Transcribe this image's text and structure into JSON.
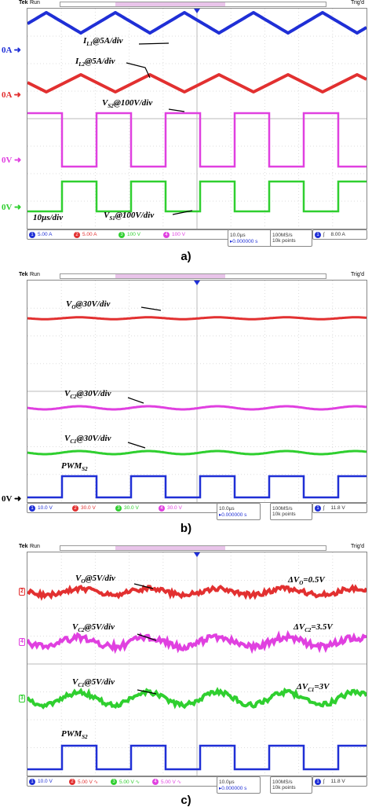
{
  "header": {
    "brand": "Tek",
    "state": "Run",
    "trigger": "Trig'd"
  },
  "colors": {
    "ch1": "#1f2fd6",
    "ch2": "#e23030",
    "ch3": "#2fcf2f",
    "ch4": "#e040e0"
  },
  "panels": [
    {
      "label": "a)",
      "levels": {
        "zero_a": "0A",
        "zero_a2": "0A",
        "zero_v": "0V",
        "zero_v2": "0V"
      },
      "annotations": {
        "il1": {
          "main": "I",
          "sub": "L1",
          "rest": "@5A/div"
        },
        "il2": {
          "main": "I",
          "sub": "L2",
          "rest": "@5A/div"
        },
        "vs2": {
          "main": "V",
          "sub": "S2",
          "rest": "@100V/div"
        },
        "vs1": {
          "main": "V",
          "sub": "S1",
          "rest": "@100V/div"
        },
        "time": "10µs/div"
      },
      "status": {
        "ch1": "5.00 A",
        "ch2": "5.00 A",
        "ch3": "100 V",
        "ch4": "100 V",
        "timebase": "10.0µs",
        "offset": "▸0.000000 s",
        "rate": "100MS/s",
        "points": "10k points",
        "trig_level": "8.00 A"
      }
    },
    {
      "label": "b)",
      "levels": {
        "zero_v": "0V"
      },
      "annotations": {
        "vo": {
          "main": "V",
          "sub": "O",
          "rest": "@30V/div"
        },
        "vc2": {
          "main": "V",
          "sub": "C2",
          "rest": "@30V/div"
        },
        "vc1": {
          "main": "V",
          "sub": "C1",
          "rest": "@30V/div"
        },
        "pwm": {
          "main": "PWM",
          "sub": "S2",
          "rest": ""
        }
      },
      "status": {
        "ch1": "10.0 V",
        "ch2": "30.0 V",
        "ch3": "30.0 V",
        "ch4": "30.0 V",
        "timebase": "10.0µs",
        "offset": "▸0.000000 s",
        "rate": "100MS/s",
        "points": "10k points",
        "trig_level": "11.8 V"
      }
    },
    {
      "label": "c)",
      "annotations": {
        "vo": {
          "main": "V",
          "sub": "O",
          "rest": "@5V/div"
        },
        "vc2": {
          "main": "V",
          "sub": "C2",
          "rest": "@5V/div"
        },
        "vc1": {
          "main": "V",
          "sub": "C1",
          "rest": "@5V/div"
        },
        "pwm": {
          "main": "PWM",
          "sub": "S2",
          "rest": ""
        },
        "dvo": {
          "main": "ΔV",
          "sub": "O",
          "rest": "=0.5V"
        },
        "dvc2": {
          "main": "ΔV",
          "sub": "C2",
          "rest": "=3.5V"
        },
        "dvc1": {
          "main": "ΔV",
          "sub": "C1",
          "rest": "=3V"
        }
      },
      "markers": {
        "ch2": "2",
        "ch4": "4",
        "ch3": "3"
      },
      "status": {
        "ch1": "10.0 V",
        "ch2": "5.00 V ∿",
        "ch3": "5.00 V ∿",
        "ch4": "5.00 V ∿",
        "timebase": "10.0µs",
        "offset": "▸0.000000 s",
        "rate": "100MS/s",
        "points": "10k points",
        "trig_level": "11.8 V"
      }
    }
  ],
  "chart_data": [
    {
      "type": "line",
      "title": "",
      "xlabel": "10µs/div",
      "series": [
        {
          "name": "IL1@5A/div",
          "shape": "triangle"
        },
        {
          "name": "IL2@5A/div",
          "shape": "triangle"
        },
        {
          "name": "VS2@100V/div",
          "shape": "square"
        },
        {
          "name": "VS1@100V/div",
          "shape": "square"
        }
      ],
      "grid": true
    },
    {
      "type": "line",
      "series": [
        {
          "name": "VO@30V/div",
          "shape": "dc"
        },
        {
          "name": "VC2@30V/div",
          "shape": "dc"
        },
        {
          "name": "VC1@30V/div",
          "shape": "dc"
        },
        {
          "name": "PWMS2",
          "shape": "square"
        }
      ],
      "grid": true
    },
    {
      "type": "line",
      "series": [
        {
          "name": "VO@5V/div",
          "ripple_v": 0.5
        },
        {
          "name": "VC2@5V/div",
          "ripple_v": 3.5
        },
        {
          "name": "VC1@5V/div",
          "ripple_v": 3
        },
        {
          "name": "PWMS2",
          "shape": "square"
        }
      ],
      "grid": true
    }
  ]
}
